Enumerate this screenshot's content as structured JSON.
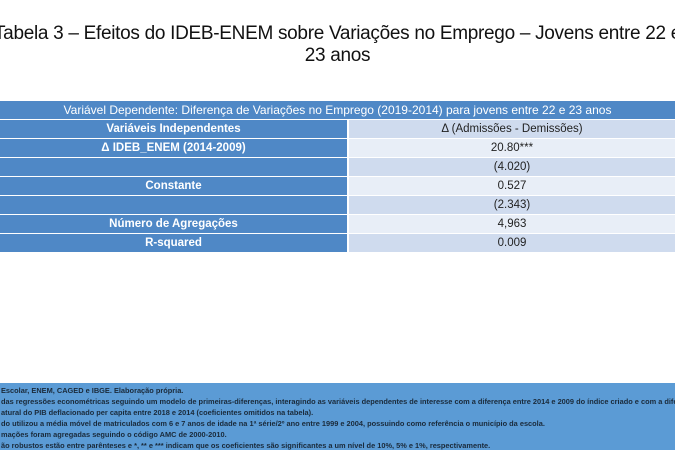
{
  "title": {
    "line1": "Tabela 3 –  Efeitos do IDEB-ENEM sobre Variações no Emprego – Jovens entre 22 e",
    "line2": "23 anos"
  },
  "table": {
    "caption": "Variável Dependente: Diferença de Variações no Emprego (2019-2014) para jovens entre 22 e 23 anos",
    "header": {
      "left": "Variáveis Independentes",
      "right": "Δ (Admissões - Demissões)"
    },
    "rows": [
      {
        "label": "Δ IDEB_ENEM (2014-2009)",
        "value": "20.80***"
      },
      {
        "label": "",
        "value": "(4.020)"
      },
      {
        "label": "Constante",
        "value": "0.527"
      },
      {
        "label": "",
        "value": "(2.343)"
      },
      {
        "label": "Número de Agregações",
        "value": "4,963"
      },
      {
        "label": "R-squared",
        "value": "0.009"
      }
    ]
  },
  "notes": [
    "Escolar, ENEM, CAGED e IBGE. Elaboração própria.",
    "das regressões econométricas seguindo um modelo de primeiras-diferenças, interagindo as variáveis dependentes de interesse com a diferença entre 2014 e 2009 do índice criado e com a diferenç",
    "atural do PIB deflacionado per capita entre 2018 e 2014 (coeficientes omitidos na tabela).",
    "do utilizou a média móvel de matriculados com 6 e 7 anos de idade na 1ª série/2º ano entre 1999 e 2004, possuindo como referência o município da escola.",
    "mações foram agregadas seguindo o código AMC de 2000-2010.",
    "ão robustos estão entre parênteses e *, ** e *** indicam que os coeficientes são significantes a um nível de 10%, 5% e 1%, respectivamente."
  ],
  "colors": {
    "header_blue": "#4f88c6",
    "notes_blue": "#5b9bd5",
    "row_light": "#e8eef7",
    "row_mid": "#cfdbee"
  }
}
